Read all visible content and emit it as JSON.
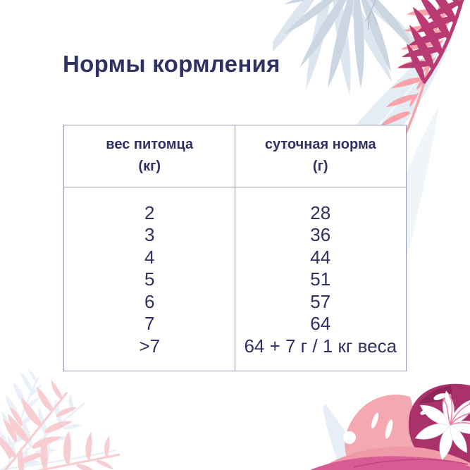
{
  "page": {
    "title": "Нормы кормления"
  },
  "table": {
    "columns": [
      {
        "title": "вес питомца",
        "unit": "(кг)"
      },
      {
        "title": "суточная норма",
        "unit": "(г)"
      }
    ],
    "rows": [
      {
        "weight": "2",
        "norm": "28"
      },
      {
        "weight": "3",
        "norm": "36"
      },
      {
        "weight": "4",
        "norm": "44"
      },
      {
        "weight": "5",
        "norm": "51"
      },
      {
        "weight": "6",
        "norm": "57"
      },
      {
        "weight": "7",
        "norm": "64"
      },
      {
        "weight": ">7",
        "norm": "64 + 7 г / 1 кг веса"
      }
    ]
  },
  "colors": {
    "text_navy": "#2e3162",
    "table_border": "#9298ae",
    "background": "#ffffff",
    "decor": {
      "crimson_fern": "#ba3b73",
      "salmon_fern": "#f9a2a9",
      "palm_gray_blue": "#cbd6e2",
      "feather_pale_blue": "#e4ecf4",
      "fern_pale_blue": "#e9f0f8",
      "fern_pale_pink": "#f8cdd1",
      "monstera_dark_magenta": "#aa3169",
      "monstera_pink": "#f4a9b2",
      "petal_deep_pink": "#d95b93",
      "petal_mid_pink": "#f09aa9",
      "lily_white": "#ffffff",
      "stamen_pink": "#ee83a8"
    }
  }
}
